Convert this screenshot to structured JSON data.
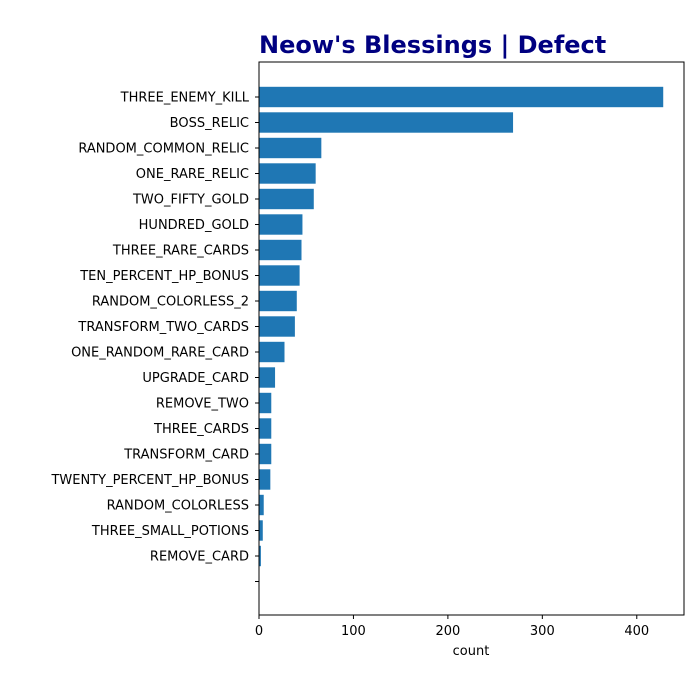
{
  "chart_data": {
    "type": "bar",
    "orientation": "horizontal",
    "title": "Neow's Blessings | Defect",
    "title_color": "#000080",
    "xlabel": "count",
    "ylabel": "",
    "xlim": [
      0,
      450
    ],
    "x_ticks": [
      0,
      100,
      200,
      300,
      400
    ],
    "grid": false,
    "bar_color": "#1f77b4",
    "categories": [
      "THREE_ENEMY_KILL",
      "BOSS_RELIC",
      "RANDOM_COMMON_RELIC",
      "ONE_RARE_RELIC",
      "TWO_FIFTY_GOLD",
      "HUNDRED_GOLD",
      "THREE_RARE_CARDS",
      "TEN_PERCENT_HP_BONUS",
      "RANDOM_COLORLESS_2",
      "TRANSFORM_TWO_CARDS",
      "ONE_RANDOM_RARE_CARD",
      "UPGRADE_CARD",
      "REMOVE_TWO",
      "THREE_CARDS",
      "TRANSFORM_CARD",
      "TWENTY_PERCENT_HP_BONUS",
      "RANDOM_COLORLESS",
      "THREE_SMALL_POTIONS",
      "REMOVE_CARD",
      ""
    ],
    "values": [
      428,
      269,
      66,
      60,
      58,
      46,
      45,
      43,
      40,
      38,
      27,
      17,
      13,
      13,
      13,
      12,
      5,
      4,
      2,
      0
    ]
  }
}
